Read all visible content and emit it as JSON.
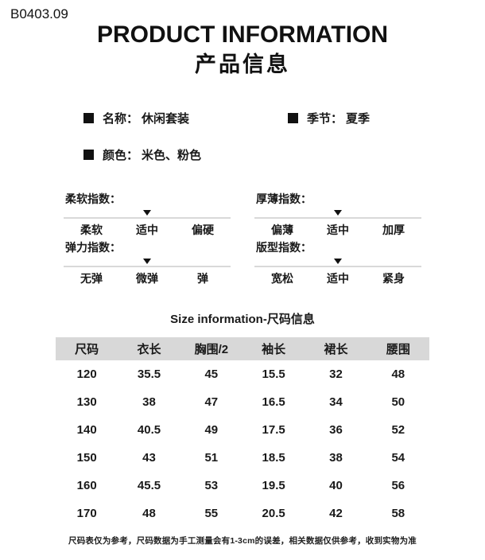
{
  "header": {
    "sku": "B0403.09",
    "title_en": "PRODUCT INFORMATION",
    "title_cn": "产品信息"
  },
  "attributes": [
    {
      "label": "名称：",
      "value": "休闲套装"
    },
    {
      "label": "季节：",
      "value": "夏季"
    },
    {
      "label": "颜色：",
      "value": "米色、粉色"
    }
  ],
  "indices": [
    {
      "label": "柔软指数：",
      "options": [
        "柔软",
        "适中",
        "偏硬"
      ],
      "selected_index": 1
    },
    {
      "label": "厚薄指数：",
      "options": [
        "偏薄",
        "适中",
        "加厚"
      ],
      "selected_index": 1
    },
    {
      "label": "弹力指数：",
      "options": [
        "无弹",
        "微弹",
        "弹"
      ],
      "selected_index": 1
    },
    {
      "label": "版型指数：",
      "options": [
        "宽松",
        "适中",
        "紧身"
      ],
      "selected_index": 1
    }
  ],
  "size_section": {
    "title": "Size information-尺码信息",
    "columns": [
      "尺码",
      "衣长",
      "胸围/2",
      "袖长",
      "裙长",
      "腰围"
    ],
    "rows": [
      [
        "120",
        "35.5",
        "45",
        "15.5",
        "32",
        "48"
      ],
      [
        "130",
        "38",
        "47",
        "16.5",
        "34",
        "50"
      ],
      [
        "140",
        "40.5",
        "49",
        "17.5",
        "36",
        "52"
      ],
      [
        "150",
        "43",
        "51",
        "18.5",
        "38",
        "54"
      ],
      [
        "160",
        "45.5",
        "53",
        "19.5",
        "40",
        "56"
      ],
      [
        "170",
        "48",
        "55",
        "20.5",
        "42",
        "58"
      ]
    ],
    "note": "尺码表仅为参考，尺码数据为手工测量会有1-3cm的误差，相关数据仅供参考，收到实物为准"
  },
  "colors": {
    "table_header_bg": "#d8d8d8",
    "divider_line": "#d9d9d9",
    "text": "#1a1a1a"
  }
}
